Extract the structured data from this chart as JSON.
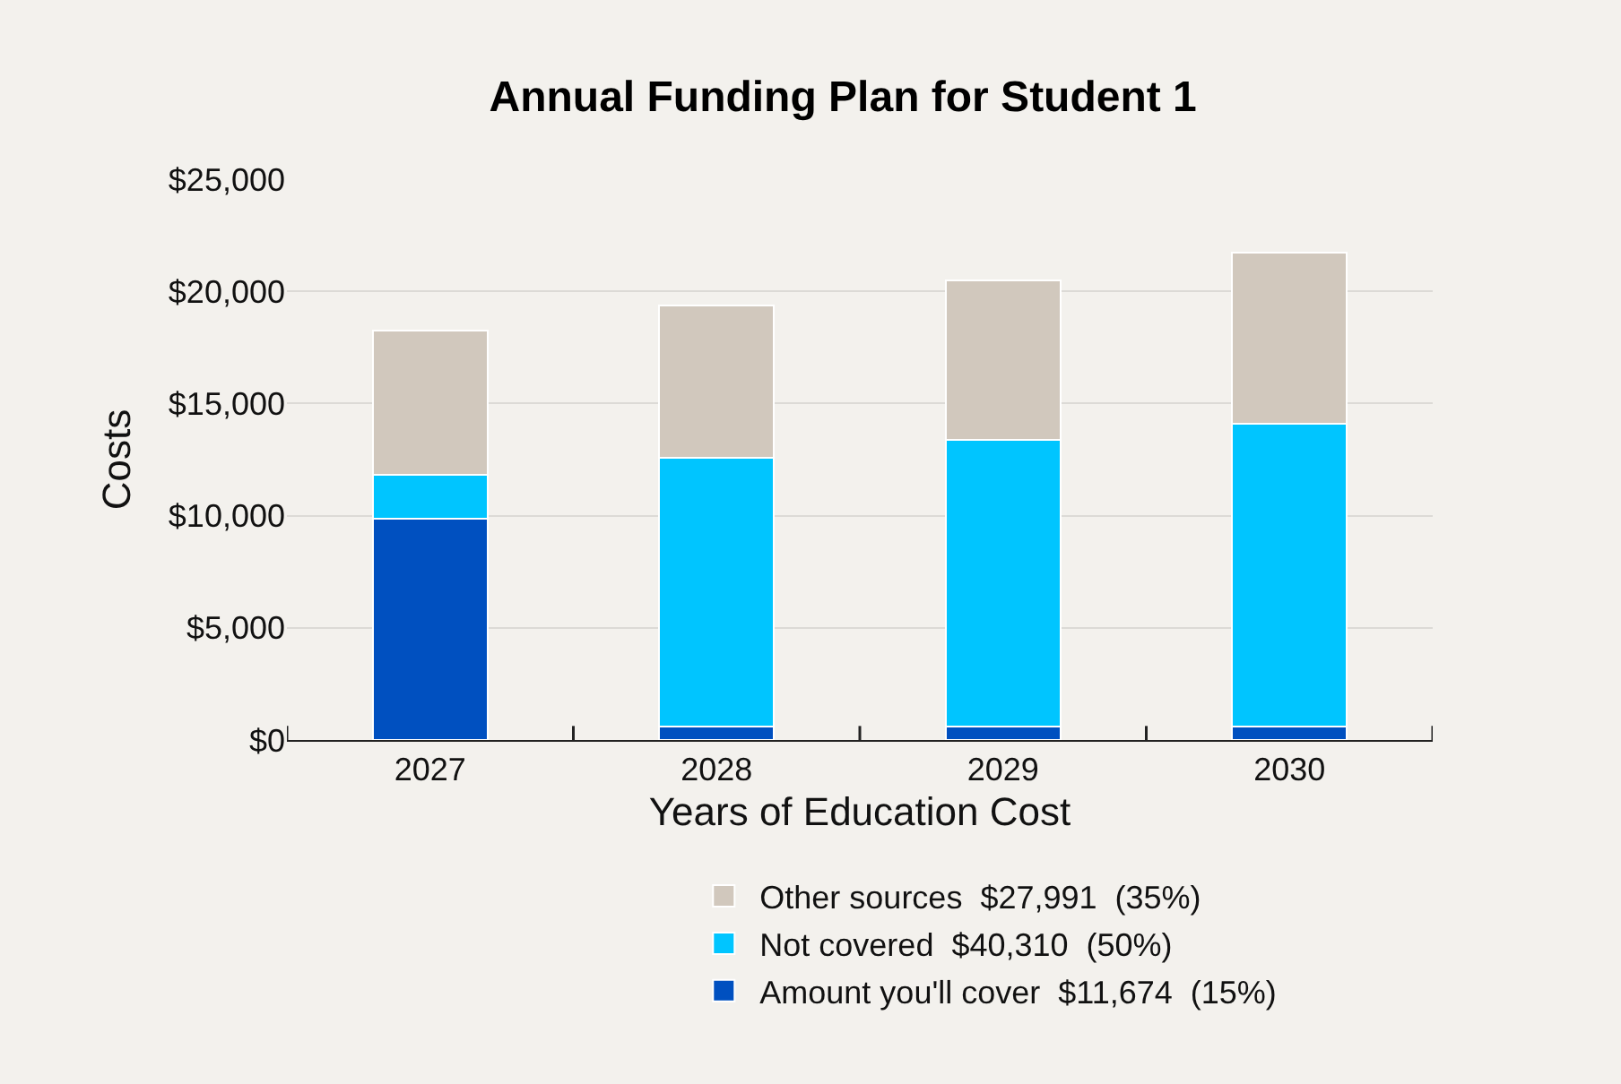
{
  "chart_data": {
    "type": "bar",
    "title": "Annual Funding Plan for Student 1",
    "xlabel": "Years of Education Cost",
    "ylabel": "Costs",
    "categories": [
      "2027",
      "2028",
      "2029",
      "2030"
    ],
    "stacked": true,
    "series": [
      {
        "name": "Amount you'll cover  $11,674  (15%)",
        "color": "#0050c0",
        "values": [
          9850,
          600,
          600,
          600
        ]
      },
      {
        "name": "Not covered  $40,310  (50%)",
        "color": "#00c5ff",
        "values": [
          1990,
          12000,
          12770,
          13500
        ]
      },
      {
        "name": "Other sources  $27,991  (35%)",
        "color": "#d1c8bd",
        "values": [
          6410,
          6760,
          7100,
          7630
        ]
      }
    ],
    "ylim": [
      0,
      25000
    ],
    "yticks": [
      {
        "value": 0,
        "label": "$0"
      },
      {
        "value": 5000,
        "label": "$5,000"
      },
      {
        "value": 10000,
        "label": "$10,000"
      },
      {
        "value": 15000,
        "label": "$15,000"
      },
      {
        "value": 20000,
        "label": "$20,000"
      },
      {
        "value": 25000,
        "label": "$25,000"
      }
    ],
    "grid": "y",
    "legend": "bottom"
  }
}
